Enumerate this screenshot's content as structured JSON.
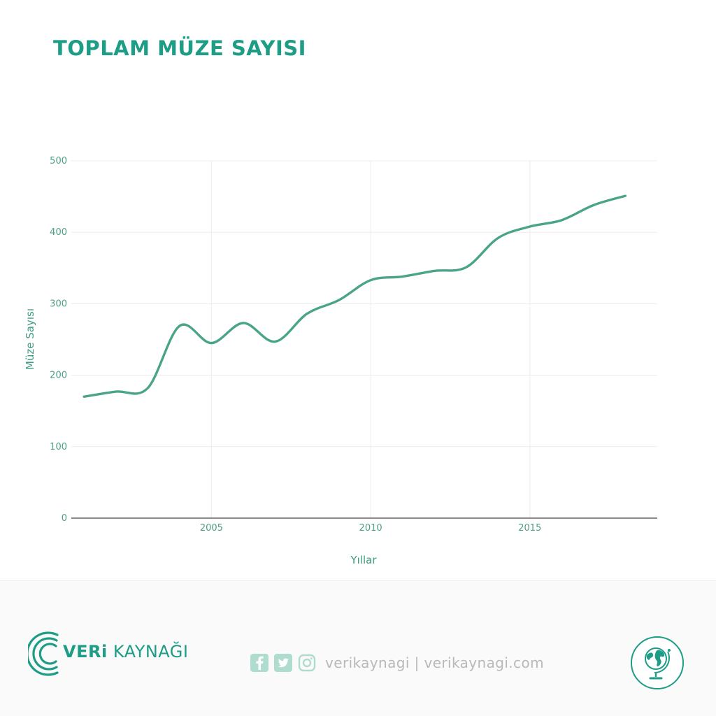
{
  "title": "TOPLAM MÜZE SAYISI",
  "chart_data": {
    "type": "line",
    "title": "TOPLAM MÜZE SAYISI",
    "xlabel": "Yıllar",
    "ylabel": "Müze Sayısı",
    "xlim": [
      2000.6,
      2019.0
    ],
    "ylim": [
      0,
      500
    ],
    "x_ticks": [
      2005,
      2010,
      2015
    ],
    "y_ticks": [
      0,
      100,
      200,
      300,
      400,
      500
    ],
    "grid": true,
    "legend": "none",
    "series": [
      {
        "color": "#4aa48a",
        "x": [
          2001,
          2002,
          2003,
          2004,
          2005,
          2006,
          2007,
          2008,
          2009,
          2010,
          2011,
          2012,
          2013,
          2014,
          2015,
          2016,
          2017,
          2018
        ],
        "y": [
          170,
          177,
          182,
          269,
          245,
          273,
          247,
          286,
          305,
          333,
          338,
          346,
          351,
          392,
          408,
          417,
          438,
          451
        ]
      }
    ]
  },
  "colors": {
    "accent": "#1d9c86",
    "line": "#4aa48a",
    "tick_text": "#4d9e88",
    "grid": "#ececec",
    "axis": "#444444",
    "footer_bg": "#fafafa",
    "footer_text": "#b9b9b9",
    "social_icon": "#b0dccf"
  },
  "footer": {
    "brand_bold": "VERi",
    "brand_rest": " KAYNAĞI",
    "social_text": "verikaynagi | verikaynagi.com",
    "icons": [
      "facebook-icon",
      "twitter-icon",
      "instagram-icon",
      "globe-icon"
    ]
  }
}
